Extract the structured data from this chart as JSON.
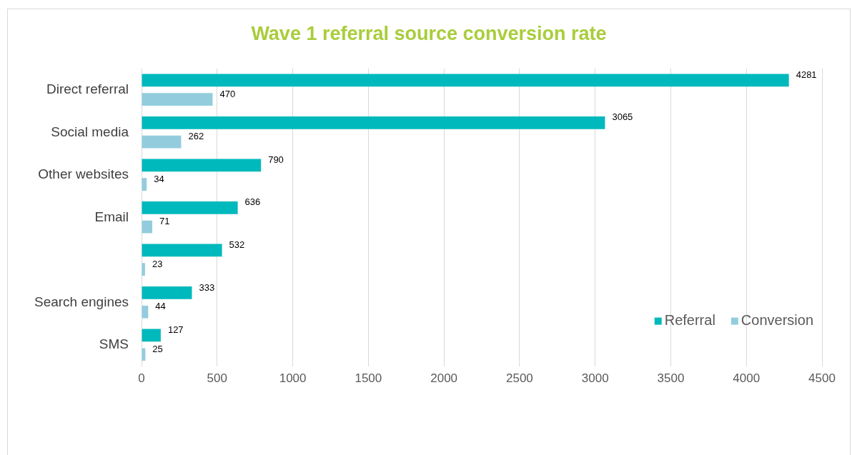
{
  "chart_data": {
    "type": "bar",
    "orientation": "horizontal",
    "title": "Wave 1 referral source conversion rate",
    "categories": [
      "Direct referral",
      "Social media",
      "Other websites",
      "Email",
      null,
      "Search engines",
      "SMS"
    ],
    "series": [
      {
        "name": "Referral",
        "color": "#00b9bc",
        "values": [
          4281,
          3065,
          790,
          636,
          532,
          333,
          127
        ]
      },
      {
        "name": "Conversion",
        "color": "#93cddd",
        "values": [
          470,
          262,
          34,
          71,
          23,
          44,
          25
        ]
      }
    ],
    "xlim": [
      0,
      4500
    ],
    "xticks": [
      0,
      500,
      1000,
      1500,
      2000,
      2500,
      3000,
      3500,
      4000,
      4500
    ],
    "grid": "x",
    "legend": "bottom right",
    "data_labels": true
  }
}
